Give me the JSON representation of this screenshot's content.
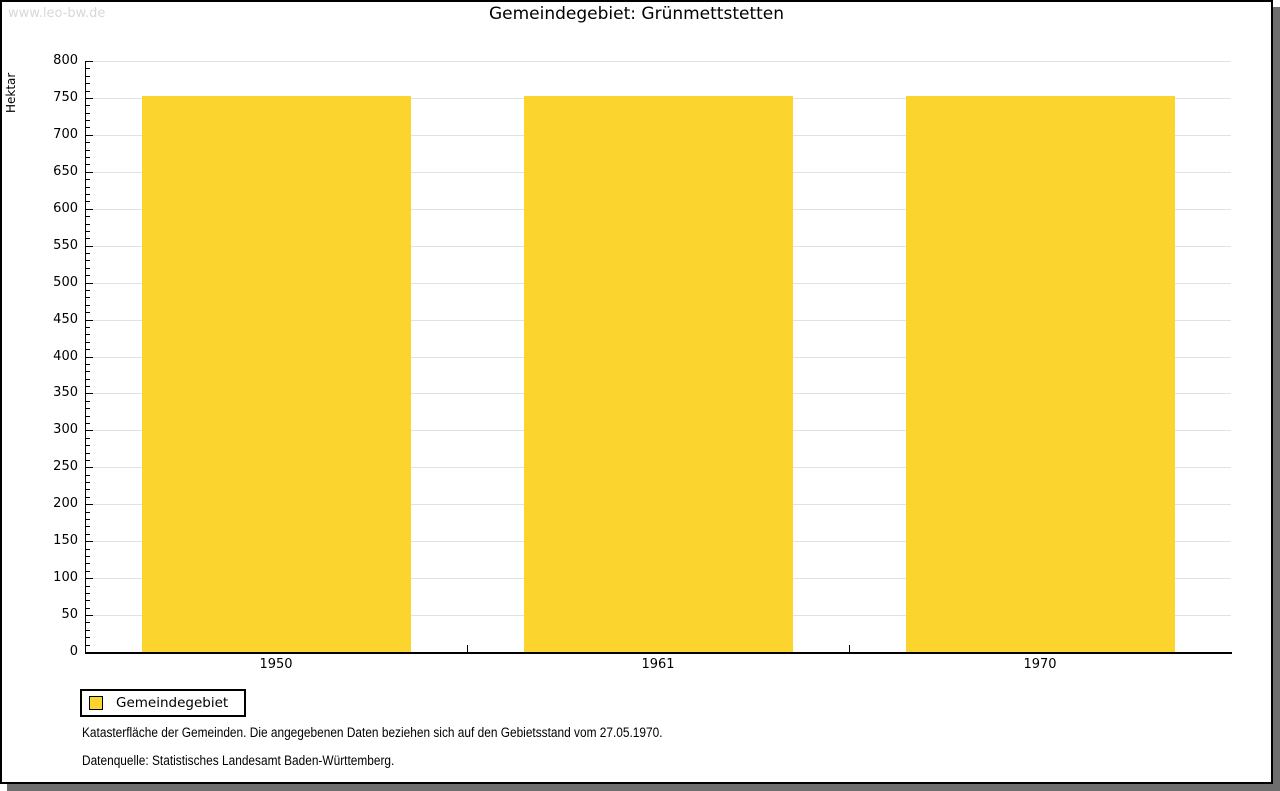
{
  "watermark": "www.leo-bw.de",
  "title": "Gemeindegebiet: Grünmettstetten",
  "chart_data": {
    "type": "bar",
    "title": "Gemeindegebiet: Grünmettstetten",
    "categories": [
      "1950",
      "1961",
      "1970"
    ],
    "series": [
      {
        "name": "Gemeindegebiet",
        "values": [
          752,
          752,
          752
        ]
      }
    ],
    "xlabel": "",
    "ylabel": "Hektar",
    "ylim": [
      0,
      800
    ],
    "y_major_step": 50,
    "y_minor_step": 10,
    "grid": true,
    "legend_position": "bottom-left",
    "bar_color": "#FCD42E",
    "gridline_color": "#e2e2e2"
  },
  "legend": {
    "label": "Gemeindegebiet",
    "swatch_color": "#FCD42E"
  },
  "footnotes": [
    "Katasterfläche der Gemeinden. Die angegebenen Daten beziehen sich auf den Gebietsstand vom 27.05.1970.",
    "Datenquelle: Statistisches Landesamt Baden-Württemberg."
  ]
}
